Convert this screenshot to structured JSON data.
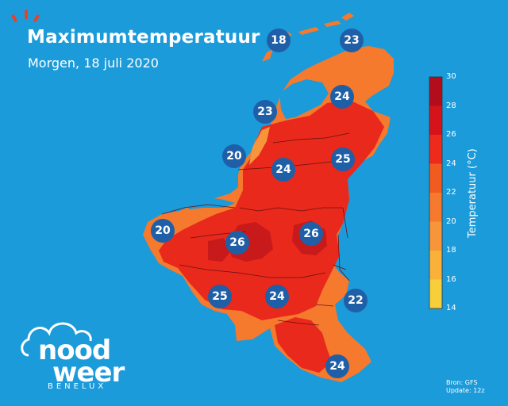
{
  "title": "Maximumtemperatuur",
  "subtitle": "Morgen, 18 juli 2020",
  "brand": {
    "word1": "nood",
    "word2": "weer",
    "word3": "BENELUX"
  },
  "source": {
    "line1": "Bron: GFS",
    "line2": "Update: 12z"
  },
  "legend": {
    "title": "Temperatuur (°C)",
    "ticks": [
      "30",
      "28",
      "26",
      "24",
      "22",
      "20",
      "18",
      "16",
      "14"
    ],
    "colors": [
      "#b30d1c",
      "#d6131b",
      "#ee2a1c",
      "#f25b1f",
      "#f57a2d",
      "#f7953a",
      "#f9b13a",
      "#f7cf3a"
    ]
  },
  "labels": [
    {
      "id": "l1",
      "value": "18"
    },
    {
      "id": "l2",
      "value": "23"
    },
    {
      "id": "l3",
      "value": "24"
    },
    {
      "id": "l4",
      "value": "23"
    },
    {
      "id": "l5",
      "value": "20"
    },
    {
      "id": "l6",
      "value": "24"
    },
    {
      "id": "l7",
      "value": "25"
    },
    {
      "id": "l8",
      "value": "20"
    },
    {
      "id": "l9",
      "value": "26"
    },
    {
      "id": "l10",
      "value": "26"
    },
    {
      "id": "l11",
      "value": "25"
    },
    {
      "id": "l12",
      "value": "24"
    },
    {
      "id": "l13",
      "value": "22"
    },
    {
      "id": "l14",
      "value": "24"
    }
  ],
  "colors": {
    "sea": "#1b9bda",
    "bubble": "#1f5fa8"
  }
}
